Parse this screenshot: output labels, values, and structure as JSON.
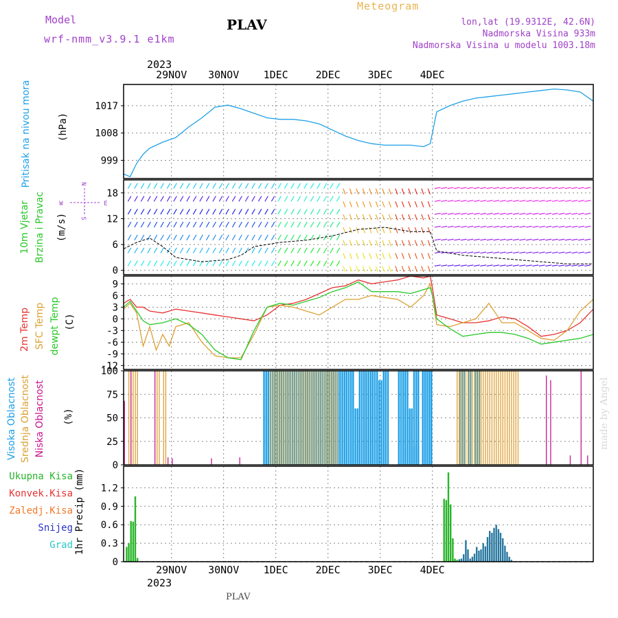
{
  "header": {
    "title": "PLAV",
    "meteogram_label": "Meteogram",
    "model_label": "Model",
    "model_name": "wrf-nmm_v3.9.1 e1km",
    "lonlat": "lon,lat (19.9312E, 42.6N)",
    "elevation": "Nadmorska Visina 933m",
    "model_elevation": "Nadmorska Visina u modelu 1003.18m",
    "year_top": "2023",
    "year_bottom": "2023",
    "footer_station": "PLAV",
    "credit": "made by Angel"
  },
  "colors": {
    "pressure": "#1ea0e6",
    "temp2m": "#e63232",
    "sfc_temp": "#dca032",
    "dewpt": "#28c828",
    "high_cloud": "#1ea0e6",
    "mid_cloud": "#dca032",
    "low_cloud": "#c8148c",
    "total_precip": "#28b428",
    "conv_precip": "#e63232",
    "frz_precip": "#f07828",
    "snow": "#2832c8",
    "graupel": "#28c8c8"
  },
  "chart_data": [
    {
      "type": "line",
      "panel": "pressure",
      "x_ticks": [
        "29NOV",
        "30NOV",
        "1DEC",
        "2DEC",
        "3DEC",
        "4DEC"
      ],
      "y_ticks": [
        "1017",
        "1008",
        "999"
      ],
      "ylim": [
        993,
        1024
      ],
      "ylabel": "(hPa)",
      "title_label": "Pritisak na nivou mora",
      "series": [
        {
          "key": "pressure",
          "x_hours": [
            0,
            3,
            6,
            9,
            12,
            18,
            24,
            30,
            36,
            42,
            48,
            54,
            60,
            66,
            72,
            78,
            84,
            90,
            96,
            102,
            108,
            114,
            120,
            126,
            132,
            138,
            141,
            144,
            150,
            156,
            162,
            168,
            174,
            180,
            186,
            192,
            198,
            204,
            210,
            216
          ],
          "values": [
            994.5,
            993.6,
            998,
            1001,
            1003,
            1005,
            1006.5,
            1010,
            1013,
            1016.5,
            1017.2,
            1016,
            1014.5,
            1013,
            1012.5,
            1012.5,
            1012,
            1011,
            1009,
            1007,
            1005.5,
            1004.5,
            1004,
            1004,
            1004,
            1003.5,
            1004.5,
            1015,
            1017,
            1018.5,
            1019.5,
            1020,
            1020.5,
            1021,
            1021.5,
            1022,
            1022.5,
            1022.2,
            1021.5,
            1018.5
          ]
        }
      ]
    },
    {
      "type": "line",
      "panel": "wind",
      "y_ticks": [
        "18",
        "12",
        "6",
        "0"
      ],
      "ylim": [
        -1,
        21
      ],
      "ylabel": "(m/s)",
      "title_label_1": "10m Vjetar",
      "title_label_2": "Brzina i Pravac",
      "compass_n": "N",
      "compass_s": "S",
      "compass_e": "E",
      "compass_w": "W",
      "series": [
        {
          "key": "speed",
          "x_hours": [
            0,
            6,
            12,
            18,
            24,
            36,
            48,
            54,
            60,
            66,
            72,
            84,
            96,
            108,
            120,
            132,
            141,
            144,
            156,
            168,
            180,
            192,
            204,
            216
          ],
          "values": [
            5,
            6.5,
            7.5,
            5.5,
            3,
            2,
            2.5,
            3.5,
            5.5,
            6,
            6.5,
            7,
            8,
            9.5,
            10,
            9,
            9,
            4.5,
            3.5,
            3,
            2.5,
            2,
            1.5,
            1.5
          ]
        }
      ]
    },
    {
      "type": "line",
      "panel": "temperature",
      "y_ticks": [
        "9",
        "6",
        "3",
        "0",
        "-3",
        "-6",
        "-9",
        "-12"
      ],
      "ylim": [
        -13,
        11
      ],
      "ylabel": "(C)",
      "series": [
        {
          "name": "2m Temp",
          "key": "temp2m",
          "x_hours": [
            0,
            3,
            6,
            9,
            12,
            18,
            24,
            30,
            36,
            42,
            48,
            54,
            60,
            66,
            72,
            78,
            84,
            90,
            96,
            102,
            108,
            114,
            120,
            126,
            132,
            138,
            141,
            142,
            144,
            150,
            156,
            162,
            168,
            174,
            180,
            186,
            192,
            198,
            204,
            210,
            216
          ],
          "values": [
            4,
            5,
            3,
            3,
            2,
            1.5,
            2.5,
            2,
            1.5,
            1,
            0.5,
            0,
            -0.5,
            1,
            3.5,
            4,
            5,
            6.5,
            8,
            8.5,
            10,
            9,
            9.5,
            10,
            11,
            10.5,
            11,
            8,
            1,
            0,
            -1,
            -1,
            -0.5,
            0.5,
            0,
            -2,
            -4.5,
            -4,
            -3,
            -1,
            2.5
          ]
        },
        {
          "name": "SFC Temp",
          "key": "sfc_temp",
          "x_hours": [
            0,
            3,
            6,
            9,
            12,
            15,
            18,
            21,
            24,
            30,
            36,
            42,
            48,
            54,
            60,
            66,
            72,
            78,
            84,
            90,
            96,
            102,
            108,
            114,
            120,
            126,
            132,
            138,
            141,
            142,
            144,
            150,
            156,
            162,
            168,
            174,
            180,
            186,
            192,
            198,
            204,
            210,
            216
          ],
          "values": [
            2.5,
            4,
            1.5,
            -7,
            -2,
            -8,
            -4,
            -7,
            -2,
            -1,
            -6,
            -9.5,
            -10,
            -10,
            -4,
            3,
            3.5,
            3,
            2,
            1,
            3,
            5,
            5,
            6,
            5.5,
            5,
            3,
            6,
            9,
            6,
            -1.5,
            -2,
            -1,
            0,
            4,
            -1,
            -1,
            -3,
            -5,
            -5.5,
            -3,
            2,
            5
          ]
        },
        {
          "name": "dewpt Temp",
          "key": "dewpt",
          "x_hours": [
            0,
            3,
            6,
            9,
            12,
            18,
            24,
            30,
            36,
            42,
            48,
            54,
            60,
            66,
            72,
            78,
            84,
            90,
            96,
            102,
            108,
            114,
            120,
            126,
            132,
            138,
            141,
            142,
            144,
            150,
            156,
            162,
            168,
            174,
            180,
            186,
            192,
            198,
            204,
            210,
            216
          ],
          "values": [
            3,
            4.5,
            2,
            -0.5,
            -1.5,
            -1,
            0,
            -1.5,
            -4,
            -8,
            -10,
            -10.5,
            -3,
            3,
            4,
            3.5,
            4.5,
            5.5,
            7,
            8,
            9.5,
            7,
            7,
            7,
            6.5,
            7.5,
            8,
            6,
            0,
            -2.5,
            -4.5,
            -4,
            -3.5,
            -3.5,
            -4,
            -5,
            -6.5,
            -6,
            -5.5,
            -5,
            -4
          ]
        }
      ]
    },
    {
      "type": "bar",
      "panel": "clouds",
      "y_ticks": [
        "100",
        "75",
        "50",
        "25",
        "0"
      ],
      "ylim": [
        0,
        100
      ],
      "ylabel": "(%)",
      "series": [
        {
          "name": "Visoka Oblacnost",
          "key": "high_cloud",
          "ranges": [
            [
              64,
              100,
              100
            ],
            [
              100,
              106,
              100
            ],
            [
              106,
              108,
              60
            ],
            [
              108,
              112,
              100
            ],
            [
              112,
              115,
              100
            ],
            [
              115,
              117,
              100
            ],
            [
              117,
              119,
              90
            ],
            [
              119,
              122,
              100
            ],
            [
              126,
              131,
              100
            ],
            [
              131,
              133,
              60
            ],
            [
              133,
              135,
              20
            ],
            [
              133,
              136,
              100
            ],
            [
              137,
              142,
              100
            ],
            [
              139,
              142,
              100
            ],
            [
              154,
              157,
              100
            ],
            [
              158,
              159,
              100
            ],
            [
              159,
              160,
              100
            ],
            [
              161,
              164,
              100
            ]
          ]
        },
        {
          "name": "Srednja Oblacnost",
          "key": "mid_cloud",
          "ranges": [
            [
              2,
              7,
              100
            ],
            [
              15,
              17,
              100
            ],
            [
              18,
              20,
              100
            ],
            [
              67,
              99,
              100
            ],
            [
              153,
              182,
              100
            ]
          ]
        },
        {
          "name": "Niska Oblacnost",
          "key": "low_cloud",
          "ranges": [
            [
              0,
              1,
              68
            ],
            [
              3,
              4,
              100
            ],
            [
              14,
              15,
              100
            ],
            [
              20,
              21,
              8
            ],
            [
              22,
              23,
              7
            ],
            [
              40,
              41,
              7
            ],
            [
              53,
              54,
              8
            ],
            [
              194,
              195,
              95
            ],
            [
              196,
              197,
              90
            ],
            [
              205,
              206,
              10
            ],
            [
              210,
              211,
              100
            ],
            [
              213,
              214,
              10
            ]
          ]
        }
      ]
    },
    {
      "type": "bar",
      "panel": "precip",
      "y_ticks": [
        "1.2",
        "0.9",
        "0.6",
        "0.3",
        "0"
      ],
      "ylim": [
        0,
        1.55
      ],
      "ylabel": "1hr Precip (mm)",
      "legend": [
        "Ukupna Kisa",
        "Konvek.Kisa",
        "Zaledj.Kisa",
        "Snijeg",
        "Grad"
      ],
      "series": [
        {
          "name": "Ukupna Kisa",
          "key": "total_precip",
          "x_hours": [
            1,
            2,
            3,
            4,
            5,
            6,
            147,
            148,
            149,
            150,
            151,
            152,
            153
          ],
          "values": [
            0.24,
            0.3,
            0.66,
            0.65,
            1.06,
            0.06,
            1.02,
            1.0,
            1.45,
            0.93,
            0.38,
            0.05,
            0.03
          ]
        },
        {
          "name": "Snijeg",
          "key": "snow",
          "x_hours": [
            154,
            155,
            156,
            157,
            158,
            159,
            160,
            161,
            162,
            163,
            164,
            165,
            166,
            167,
            168,
            169,
            170,
            171,
            172,
            173,
            174,
            175,
            176,
            177,
            178
          ],
          "values": [
            0.04,
            0.05,
            0.12,
            0.35,
            0.2,
            0.05,
            0.08,
            0.13,
            0.24,
            0.18,
            0.2,
            0.3,
            0.25,
            0.4,
            0.5,
            0.47,
            0.55,
            0.6,
            0.53,
            0.47,
            0.38,
            0.26,
            0.16,
            0.08,
            0.03
          ]
        }
      ]
    }
  ]
}
